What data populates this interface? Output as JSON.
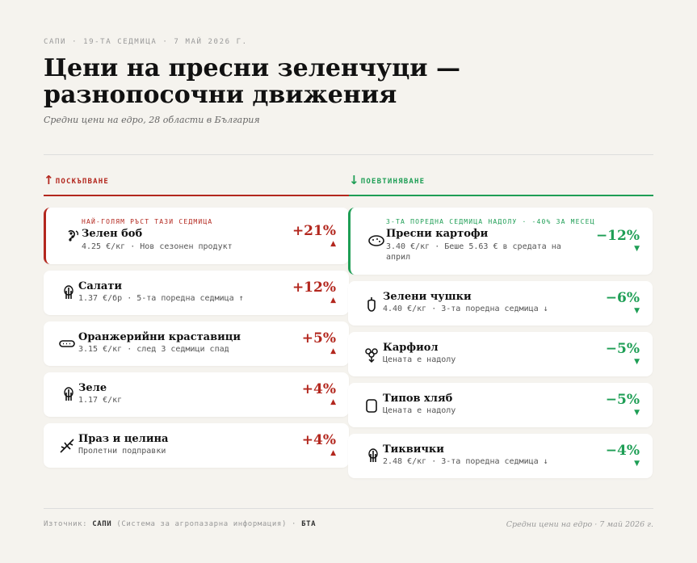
{
  "header": {
    "kicker": "САПИ · 19-ТА СЕДМИЦА · 7 МАЙ 2026 Г.",
    "title": "Цени на пресни зеленчуци — разнопосочни движения",
    "subtitle": "Средни цени на едро, 28 области в България"
  },
  "columns": {
    "up": {
      "arrow": "↑",
      "label": "ПОСКЪПВАНЕ",
      "color": "#b3271e"
    },
    "down": {
      "arrow": "↓",
      "label": "ПОЕВТИНЯВАНЕ",
      "color": "#1e9e55"
    }
  },
  "up_items": [
    {
      "tag": "НАЙ-ГОЛЯМ РЪСТ ТАЗИ СЕДМИЦА",
      "icon": "bean-icon",
      "name": "Зелен боб",
      "meta": "4.25 €/кг  ·  Нов сезонен продукт",
      "pct": "+21%",
      "tri": "▲"
    },
    {
      "icon": "lettuce-icon",
      "name": "Салати",
      "meta": "1.37 €/бр  ·  5-та поредна седмица ↑",
      "pct": "+12%",
      "tri": "▲"
    },
    {
      "icon": "cucumber-icon",
      "name": "Оранжерийни краставици",
      "meta": "3.15 €/кг  ·  след 3 седмици спад",
      "pct": "+5%",
      "tri": "▲"
    },
    {
      "icon": "cabbage-icon",
      "name": "Зеле",
      "meta": "1.17 €/кг",
      "pct": "+4%",
      "tri": "▲"
    },
    {
      "icon": "herbs-icon",
      "name": "Праз и целина",
      "meta": "Пролетни подправки",
      "pct": "+4%",
      "tri": "▲"
    }
  ],
  "down_items": [
    {
      "tag": "3-ТА ПОРЕДНА СЕДМИЦА НАДОЛУ · -40% ЗА МЕСЕЦ",
      "icon": "potato-icon",
      "name": "Пресни картофи",
      "meta": "3.40 €/кг  ·  Беше 5.63 € в средата на",
      "meta2": "април",
      "pct": "−12%",
      "tri": "▼"
    },
    {
      "icon": "pepper-icon",
      "name": "Зелени чушки",
      "meta": "4.40 €/кг  ·  3-та поредна седмица ↓",
      "pct": "−6%",
      "tri": "▼"
    },
    {
      "icon": "cauliflower-icon",
      "name": "Карфиол",
      "meta": "Цената е надолу",
      "pct": "−5%",
      "tri": "▼"
    },
    {
      "icon": "bread-icon",
      "name": "Типов хляб",
      "meta": "Цената е надолу",
      "pct": "−5%",
      "tri": "▼"
    },
    {
      "icon": "zucchini-icon",
      "name": "Тиквички",
      "meta": "2.48 €/кг  ·  3-та поредна седмица ↓",
      "pct": "−4%",
      "tri": "▼"
    }
  ],
  "footer": {
    "source_prefix": "Източник:",
    "source_name": "САПИ",
    "source_desc": "(Система за агропазарна информация)",
    "source_sep": "·",
    "source_name2": "БТА",
    "right": "Средни цени на едро · 7 май 2026 г."
  }
}
